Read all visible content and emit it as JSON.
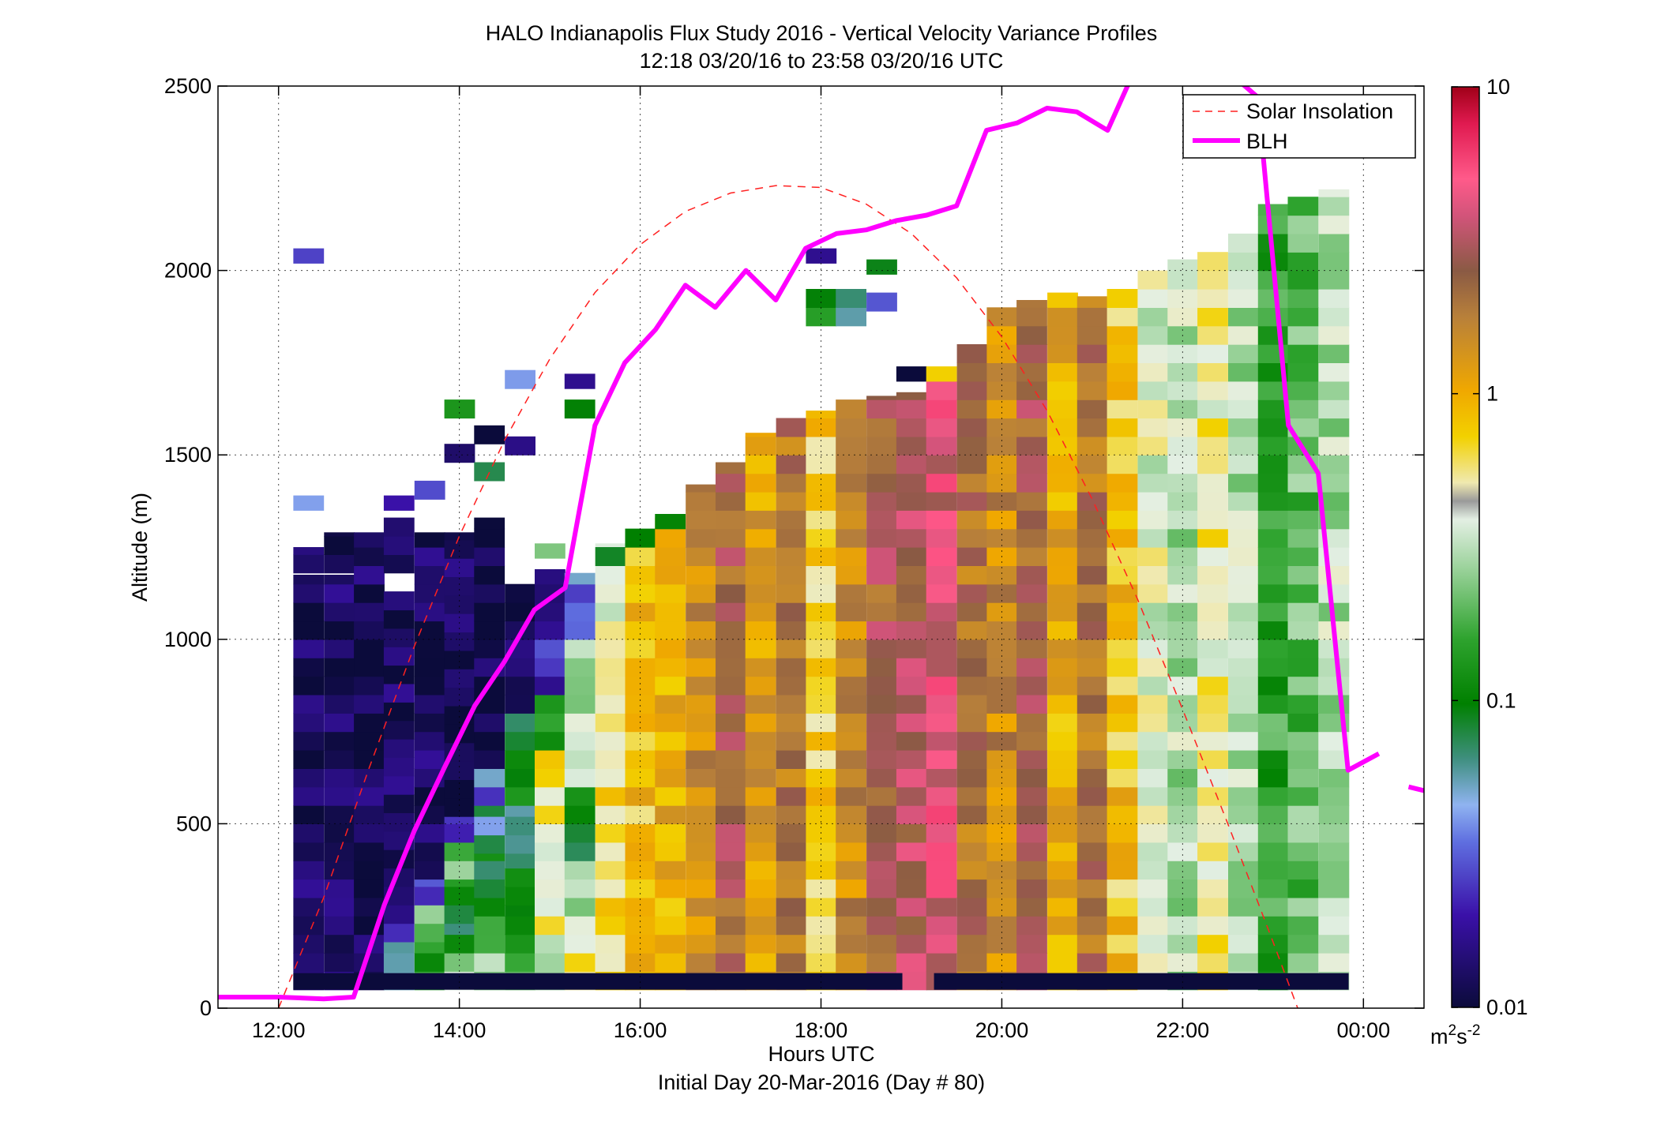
{
  "chart_data": {
    "type": "heatmap",
    "title": "HALO Indianapolis Flux Study 2016 - Vertical Velocity Variance Profiles",
    "subtitle": "12:18 03/20/16 to 23:58 03/20/16  UTC",
    "xlabel": "Hours UTC",
    "xlabel2": "Initial Day 20-Mar-2016 (Day # 80)",
    "ylabel": "Altitude (m)",
    "xlim": [
      11.33,
      24.67
    ],
    "ylim": [
      0,
      2500
    ],
    "x_ticks": [
      12,
      14,
      16,
      18,
      20,
      22,
      24
    ],
    "x_tick_labels": [
      "12:00",
      "14:00",
      "16:00",
      "18:00",
      "20:00",
      "22:00",
      "00:00"
    ],
    "y_ticks": [
      0,
      500,
      1000,
      1500,
      2000,
      2500
    ],
    "y_tick_labels": [
      "0",
      "500",
      "1000",
      "1500",
      "2000",
      "2500"
    ],
    "grid": true,
    "legend_position": "top-right",
    "colorbar": {
      "scale": "log",
      "min": 0.01,
      "max": 10,
      "ticks": [
        0.01,
        0.1,
        1,
        10
      ],
      "tick_labels": [
        "0.01",
        "0.1",
        "1",
        "10"
      ],
      "units_base": "m",
      "units_sup1": "2",
      "units_mid": "s",
      "units_sup2": "-2"
    },
    "series": [
      {
        "name": "Solar Insolation",
        "style": "dashed",
        "color": "#ff2020",
        "x": [
          12.0,
          12.5,
          13.0,
          13.5,
          14.0,
          14.5,
          15.0,
          15.5,
          16.0,
          16.5,
          17.0,
          17.5,
          18.0,
          18.5,
          19.0,
          19.5,
          20.0,
          20.5,
          21.0,
          21.5,
          22.0,
          22.5,
          23.0,
          23.5,
          23.9
        ],
        "y": [
          0,
          300,
          650,
          980,
          1280,
          1540,
          1760,
          1940,
          2070,
          2160,
          2210,
          2230,
          2225,
          2180,
          2100,
          1980,
          1820,
          1620,
          1380,
          1110,
          810,
          500,
          180,
          -150,
          -350
        ]
      },
      {
        "name": "BLH",
        "style": "solid",
        "color": "#ff00ff",
        "x": [
          11.33,
          12.0,
          12.5,
          12.83,
          13.17,
          13.5,
          13.83,
          14.17,
          14.5,
          14.83,
          15.17,
          15.5,
          15.83,
          16.17,
          16.5,
          16.83,
          17.17,
          17.5,
          17.83,
          18.17,
          18.5,
          18.83,
          19.17,
          19.5,
          19.83,
          20.17,
          20.5,
          20.83,
          21.17,
          21.5,
          21.83,
          22.17,
          22.5,
          22.83,
          23.17,
          23.5,
          23.83,
          24.17
        ],
        "y": [
          30,
          30,
          25,
          30,
          280,
          480,
          650,
          820,
          940,
          1080,
          1140,
          1580,
          1750,
          1840,
          1960,
          1900,
          2000,
          1920,
          2060,
          2100,
          2110,
          2135,
          2150,
          2175,
          2380,
          2400,
          2440,
          2430,
          2380,
          2560,
          2530,
          2520,
          2540,
          2470,
          1580,
          1450,
          645,
          690
        ],
        "x_tail": [
          24.5,
          24.67
        ],
        "y_tail": [
          600,
          590
        ]
      }
    ],
    "heatmap_note_cols": "columns every ~20 min from 12:18 to 23:58; values m2 s-2 (log colour scale)",
    "columns": [
      {
        "t": 12.33,
        "cells": [
          [
            50,
            1175,
            0.012
          ],
          [
            1180,
            1250,
            0.012
          ],
          [
            1350,
            1390,
            0.035
          ],
          [
            2020,
            2060,
            0.02
          ]
        ]
      },
      {
        "t": 12.67,
        "cells": [
          [
            50,
            1175,
            0.012
          ],
          [
            1180,
            1290,
            0.012
          ]
        ]
      },
      {
        "t": 13.0,
        "cells": [
          [
            50,
            1290,
            0.012
          ]
        ]
      },
      {
        "t": 13.33,
        "cells": [
          [
            50,
            180,
            0.06
          ],
          [
            180,
            230,
            0.025
          ],
          [
            230,
            1130,
            0.012
          ],
          [
            1180,
            1330,
            0.012
          ],
          [
            1350,
            1390,
            0.02
          ]
        ]
      },
      {
        "t": 13.67,
        "cells": [
          [
            50,
            180,
            0.15
          ],
          [
            180,
            280,
            0.2
          ],
          [
            280,
            350,
            0.03
          ],
          [
            350,
            1290,
            0.012
          ],
          [
            1380,
            1430,
            0.02
          ]
        ]
      },
      {
        "t": 14.0,
        "cells": [
          [
            50,
            150,
            0.3
          ],
          [
            150,
            230,
            0.08
          ],
          [
            230,
            350,
            0.1
          ],
          [
            350,
            450,
            0.25
          ],
          [
            450,
            520,
            0.03
          ],
          [
            520,
            1290,
            0.012
          ],
          [
            1480,
            1530,
            0.015
          ],
          [
            1600,
            1650,
            0.15
          ]
        ]
      },
      {
        "t": 14.33,
        "cells": [
          [
            50,
            150,
            0.3
          ],
          [
            150,
            250,
            0.12
          ],
          [
            250,
            420,
            0.1
          ],
          [
            420,
            550,
            0.06
          ],
          [
            550,
            650,
            0.035
          ],
          [
            650,
            1330,
            0.012
          ],
          [
            1430,
            1480,
            0.08
          ],
          [
            1530,
            1580,
            0.01
          ]
        ]
      },
      {
        "t": 14.67,
        "cells": [
          [
            50,
            150,
            0.15
          ],
          [
            150,
            280,
            0.12
          ],
          [
            280,
            420,
            0.08
          ],
          [
            420,
            550,
            0.05
          ],
          [
            550,
            800,
            0.1
          ],
          [
            800,
            1150,
            0.012
          ],
          [
            1500,
            1550,
            0.015
          ],
          [
            1680,
            1730,
            0.03
          ]
        ]
      },
      {
        "t": 15.0,
        "cells": [
          [
            50,
            100,
            0.25
          ],
          [
            100,
            200,
            0.3
          ],
          [
            200,
            500,
            0.5
          ],
          [
            500,
            700,
            0.6
          ],
          [
            700,
            850,
            0.15
          ],
          [
            850,
            1000,
            0.02
          ],
          [
            1000,
            1190,
            0.012
          ],
          [
            1220,
            1260,
            0.25
          ]
        ]
      },
      {
        "t": 15.33,
        "cells": [
          [
            50,
            200,
            0.5
          ],
          [
            200,
            400,
            0.3
          ],
          [
            400,
            600,
            0.1
          ],
          [
            600,
            1000,
            0.3
          ],
          [
            1000,
            1180,
            0.035
          ],
          [
            1600,
            1650,
            0.1
          ],
          [
            1680,
            1720,
            0.012
          ]
        ]
      },
      {
        "t": 15.67,
        "cells": [
          [
            50,
            900,
            0.6
          ],
          [
            900,
            1260,
            0.4
          ],
          [
            1200,
            1250,
            0.08
          ]
        ]
      },
      {
        "t": 16.0,
        "cells": [
          [
            50,
            1290,
            0.8
          ],
          [
            1250,
            1300,
            0.1
          ]
        ]
      },
      {
        "t": 16.33,
        "cells": [
          [
            50,
            1330,
            1.0
          ],
          [
            1300,
            1340,
            0.1
          ]
        ]
      },
      {
        "t": 16.67,
        "cells": [
          [
            50,
            1420,
            1.5
          ]
        ]
      },
      {
        "t": 17.0,
        "cells": [
          [
            50,
            1480,
            2.5
          ]
        ]
      },
      {
        "t": 17.33,
        "cells": [
          [
            50,
            1560,
            1.2
          ]
        ]
      },
      {
        "t": 17.67,
        "cells": [
          [
            50,
            1600,
            2.0
          ]
        ]
      },
      {
        "t": 18.0,
        "cells": [
          [
            50,
            1620,
            0.7
          ],
          [
            1850,
            1950,
            0.1
          ],
          [
            2020,
            2060,
            0.02
          ]
        ]
      },
      {
        "t": 18.33,
        "cells": [
          [
            50,
            1650,
            1.5
          ],
          [
            1850,
            1950,
            0.08
          ]
        ]
      },
      {
        "t": 18.67,
        "cells": [
          [
            50,
            1660,
            2.5
          ],
          [
            1890,
            1940,
            0.035
          ],
          [
            1990,
            2030,
            0.08
          ]
        ]
      },
      {
        "t": 19.0,
        "cells": [
          [
            50,
            1670,
            3.0
          ],
          [
            1700,
            1740,
            0.012
          ]
        ]
      },
      {
        "t": 19.33,
        "cells": [
          [
            50,
            1700,
            4.0
          ],
          [
            1700,
            1740,
            0.5
          ]
        ]
      },
      {
        "t": 19.67,
        "cells": [
          [
            50,
            1800,
            2.0
          ]
        ]
      },
      {
        "t": 20.0,
        "cells": [
          [
            50,
            1900,
            1.5
          ]
        ]
      },
      {
        "t": 20.33,
        "cells": [
          [
            50,
            1920,
            2.5
          ]
        ]
      },
      {
        "t": 20.67,
        "cells": [
          [
            50,
            1940,
            1.0
          ]
        ]
      },
      {
        "t": 21.0,
        "cells": [
          [
            50,
            1930,
            2.0
          ]
        ]
      },
      {
        "t": 21.33,
        "cells": [
          [
            50,
            1950,
            0.8
          ]
        ]
      },
      {
        "t": 21.67,
        "cells": [
          [
            50,
            2000,
            0.4
          ]
        ]
      },
      {
        "t": 22.0,
        "cells": [
          [
            50,
            2030,
            0.3
          ]
        ]
      },
      {
        "t": 22.33,
        "cells": [
          [
            50,
            2050,
            0.5
          ]
        ]
      },
      {
        "t": 22.67,
        "cells": [
          [
            50,
            2100,
            0.3
          ]
        ]
      },
      {
        "t": 23.0,
        "cells": [
          [
            50,
            2180,
            0.15
          ]
        ]
      },
      {
        "t": 23.33,
        "cells": [
          [
            50,
            2200,
            0.2
          ]
        ]
      },
      {
        "t": 23.67,
        "cells": [
          [
            50,
            2220,
            0.3
          ]
        ]
      }
    ]
  }
}
